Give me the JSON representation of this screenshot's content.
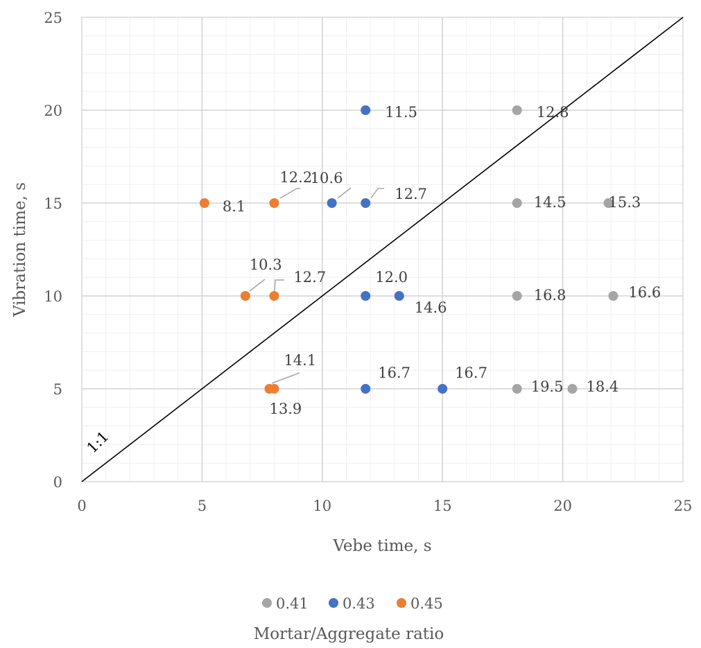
{
  "chart_data": {
    "type": "scatter",
    "xlabel": "Vebe time, s",
    "ylabel": "Vibration time, s",
    "xlim": [
      0,
      25
    ],
    "ylim": [
      0,
      25
    ],
    "x_ticks": [
      "0",
      "5",
      "10",
      "15",
      "20",
      "25"
    ],
    "y_ticks": [
      "0",
      "5",
      "10",
      "15",
      "20",
      "25"
    ],
    "grid": "major and minor",
    "legend_position": "bottom",
    "legend_title": "Mortar/Aggregate ratio",
    "reference_line": {
      "label": "1:1",
      "slope": 1
    },
    "series": [
      {
        "name": "0.41",
        "color": "#a5a5a5",
        "points": [
          {
            "x": 18.1,
            "y": 20,
            "label": "12.8"
          },
          {
            "x": 18.1,
            "y": 15,
            "label": "14.5"
          },
          {
            "x": 21.9,
            "y": 15,
            "label": "15.3"
          },
          {
            "x": 18.1,
            "y": 10,
            "label": "16.8"
          },
          {
            "x": 22.1,
            "y": 10,
            "label": "16.6"
          },
          {
            "x": 18.1,
            "y": 5,
            "label": "19.5"
          },
          {
            "x": 20.4,
            "y": 5,
            "label": "18.4"
          }
        ]
      },
      {
        "name": "0.43",
        "color": "#4472c4",
        "points": [
          {
            "x": 11.8,
            "y": 20,
            "label": "11.5"
          },
          {
            "x": 10.4,
            "y": 15,
            "label": "10.6"
          },
          {
            "x": 11.8,
            "y": 15,
            "label": "12.7"
          },
          {
            "x": 11.8,
            "y": 10,
            "label": "12.0"
          },
          {
            "x": 13.2,
            "y": 10,
            "label": "14.6"
          },
          {
            "x": 11.8,
            "y": 5,
            "label": "16.7"
          },
          {
            "x": 15.0,
            "y": 5,
            "label": "16.7"
          }
        ]
      },
      {
        "name": "0.45",
        "color": "#ed7d31",
        "points": [
          {
            "x": 5.1,
            "y": 15,
            "label": "8.1"
          },
          {
            "x": 8.0,
            "y": 15,
            "label": "12.2"
          },
          {
            "x": 6.8,
            "y": 10,
            "label": "10.3"
          },
          {
            "x": 8.0,
            "y": 10,
            "label": "12.7"
          },
          {
            "x": 7.8,
            "y": 5,
            "label": "13.9"
          },
          {
            "x": 8.0,
            "y": 5,
            "label": "14.1"
          }
        ]
      }
    ]
  }
}
